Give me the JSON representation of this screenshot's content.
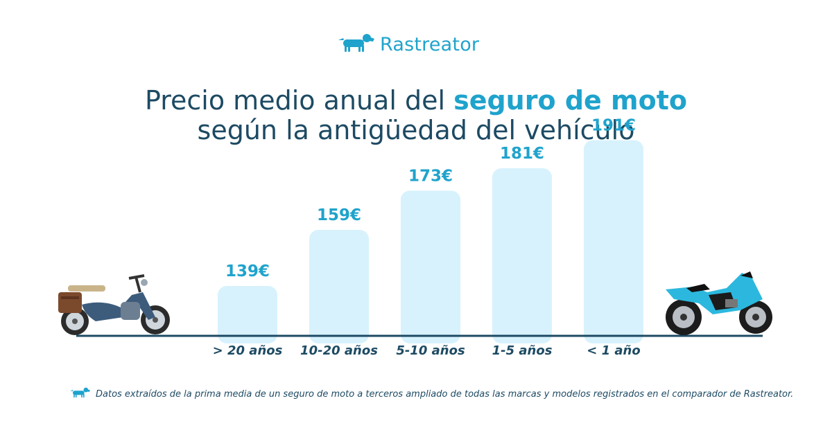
{
  "brand": {
    "name": "Rastreator",
    "logo_icon": "dachshund-dog-icon",
    "color": "#1fa3cc"
  },
  "title": {
    "line1_prefix": "Precio medio anual del ",
    "line1_highlight": "seguro de moto",
    "line2": "según la antigüedad del vehículo"
  },
  "colors": {
    "navy": "#1d4a63",
    "accent": "#1fa3cc",
    "bar": "#d7f2fd"
  },
  "chart_data": {
    "type": "bar",
    "categories": [
      "> 20 años",
      "10-20 años",
      "5-10 años",
      "1-5 años",
      "< 1 año"
    ],
    "values": [
      139,
      159,
      173,
      181,
      191
    ],
    "value_labels": [
      "139€",
      "159€",
      "173€",
      "181€",
      "191€"
    ],
    "unit": "€",
    "title": "Precio medio anual del seguro de moto según la antigüedad del vehículo",
    "xlabel": "",
    "ylabel": "",
    "ylim": [
      0,
      191
    ],
    "grid": false,
    "legend": "none"
  },
  "illustrations": {
    "left": "old-moped-icon",
    "right": "sport-motorcycle-icon"
  },
  "footnote": "Datos extraídos de la prima media de un seguro de moto a terceros ampliado de todas las marcas y modelos registrados en el comparador de Rastreator."
}
